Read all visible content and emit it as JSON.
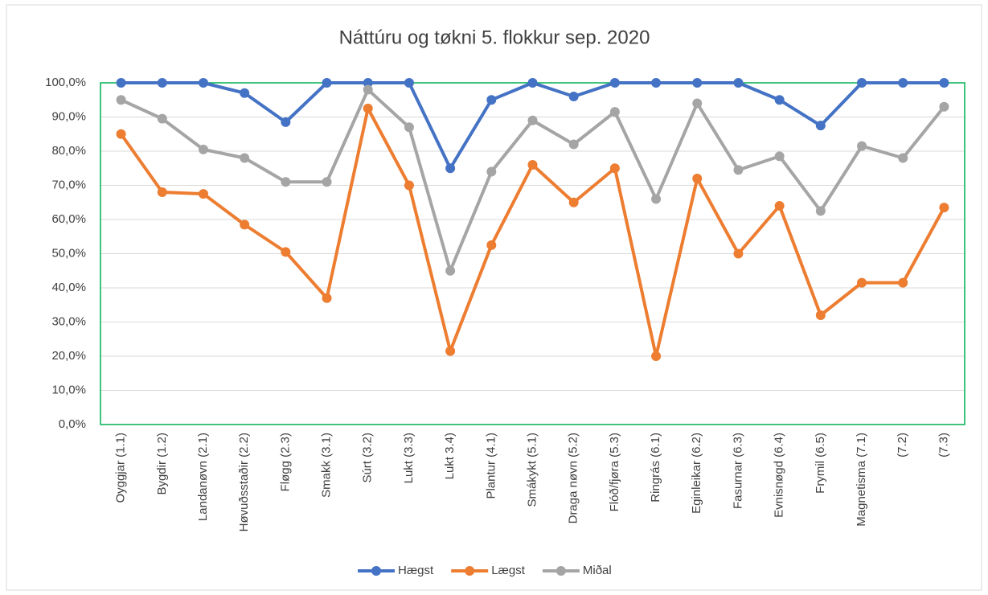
{
  "chart_data": {
    "type": "line",
    "title": "Náttúru og tøkni 5. flokkur sep. 2020",
    "categories": [
      "Oyggjar (1.1)",
      "Bygdir (1.2)",
      "Landanøvn (2.1)",
      "Høvuðsstaðir (2.2)",
      "Fløgg (2.3)",
      "Smakk (3.1)",
      "Súrt (3.2)",
      "Lukt (3.3)",
      "Lukt 3.4)",
      "Plantur (4.1)",
      "Smákykt (5.1)",
      "Draga nøvn (5.2)",
      "Flóð/fjøra (5.3)",
      "Ringrás (6.1)",
      "Eginleikar (6.2)",
      "Fasurnar (6.3)",
      "Evnisnøgd (6.4)",
      "Frymil (6.5)",
      "Magnetisma (7.1)",
      "(7.2)",
      "(7.3)"
    ],
    "series": [
      {
        "name": "Hægst",
        "color": "#4472c4",
        "values": [
          100,
          100,
          100,
          97,
          88.5,
          100,
          100,
          100,
          75,
          95,
          100,
          96,
          100,
          100,
          100,
          100,
          95,
          87.5,
          100,
          100,
          100
        ]
      },
      {
        "name": "Lægst",
        "color": "#ed7d31",
        "values": [
          85,
          68,
          67.5,
          58.5,
          50.5,
          37,
          92.5,
          70,
          21.5,
          52.5,
          76,
          65,
          75,
          20,
          72,
          50,
          64,
          32,
          41.5,
          41.5,
          63.5
        ]
      },
      {
        "name": "Miðal",
        "color": "#a5a5a5",
        "values": [
          95,
          89.5,
          80.5,
          78,
          71,
          71,
          98,
          87,
          45,
          74,
          89,
          82,
          91.5,
          66,
          94,
          74.5,
          78.5,
          62.5,
          81.5,
          78,
          93
        ]
      }
    ],
    "ylim": [
      0,
      100
    ],
    "yticks": [
      {
        "value": 0,
        "label": "0,0%"
      },
      {
        "value": 10,
        "label": "10,0%"
      },
      {
        "value": 20,
        "label": "20,0%"
      },
      {
        "value": 30,
        "label": "30,0%"
      },
      {
        "value": 40,
        "label": "40,0%"
      },
      {
        "value": 50,
        "label": "50,0%"
      },
      {
        "value": 60,
        "label": "60,0%"
      },
      {
        "value": 70,
        "label": "70,0%"
      },
      {
        "value": 80,
        "label": "80,0%"
      },
      {
        "value": 90,
        "label": "90,0%"
      },
      {
        "value": 100,
        "label": "100,0%"
      }
    ],
    "grid": true,
    "legend": "bottom"
  }
}
